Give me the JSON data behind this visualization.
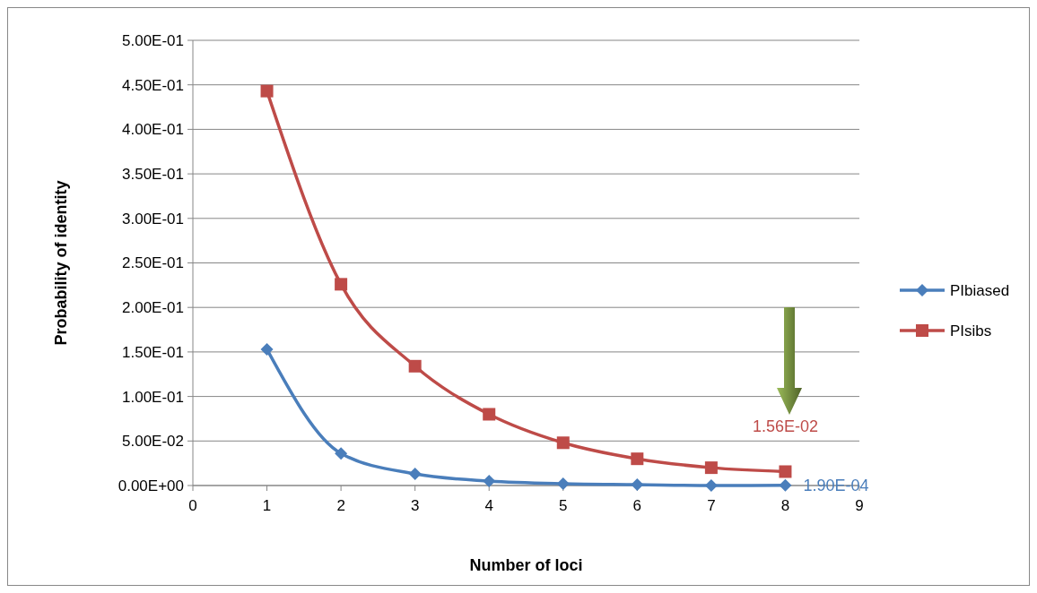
{
  "chart_data": {
    "type": "line",
    "xlabel": "Number of loci",
    "ylabel": "Probability of identity",
    "xlim": [
      0,
      9
    ],
    "xticks": [
      0,
      1,
      2,
      3,
      4,
      5,
      6,
      7,
      8,
      9
    ],
    "ylim": [
      0,
      0.5
    ],
    "yticks": [
      {
        "value": 0,
        "label": "0.00E+00"
      },
      {
        "value": 0.05,
        "label": "5.00E-02"
      },
      {
        "value": 0.1,
        "label": "1.00E-01"
      },
      {
        "value": 0.15,
        "label": "1.50E-01"
      },
      {
        "value": 0.2,
        "label": "2.00E-01"
      },
      {
        "value": 0.25,
        "label": "2.50E-01"
      },
      {
        "value": 0.3,
        "label": "3.00E-01"
      },
      {
        "value": 0.35,
        "label": "3.50E-01"
      },
      {
        "value": 0.4,
        "label": "4.00E-01"
      },
      {
        "value": 0.45,
        "label": "4.50E-01"
      },
      {
        "value": 0.5,
        "label": "5.00E-01"
      }
    ],
    "grid": "y",
    "legend": "right",
    "series": [
      {
        "name": "PIbiased",
        "color": "#4a7ebb",
        "marker": "diamond",
        "x": [
          1,
          2,
          3,
          4,
          5,
          6,
          7,
          8
        ],
        "values": [
          0.153,
          0.036,
          0.013,
          0.005,
          0.002,
          0.001,
          0,
          0.00019
        ]
      },
      {
        "name": "PIsibs",
        "color": "#be4b48",
        "marker": "square",
        "x": [
          1,
          2,
          3,
          4,
          5,
          6,
          7,
          8
        ],
        "values": [
          0.443,
          0.226,
          0.134,
          0.08,
          0.048,
          0.03,
          0.02,
          0.0156
        ]
      }
    ],
    "annotations": [
      {
        "text": "1.56E-02",
        "x": 8,
        "y": 0.0156
      },
      {
        "text": "1.90E-04",
        "x": 8,
        "y": 0.00019
      }
    ]
  }
}
